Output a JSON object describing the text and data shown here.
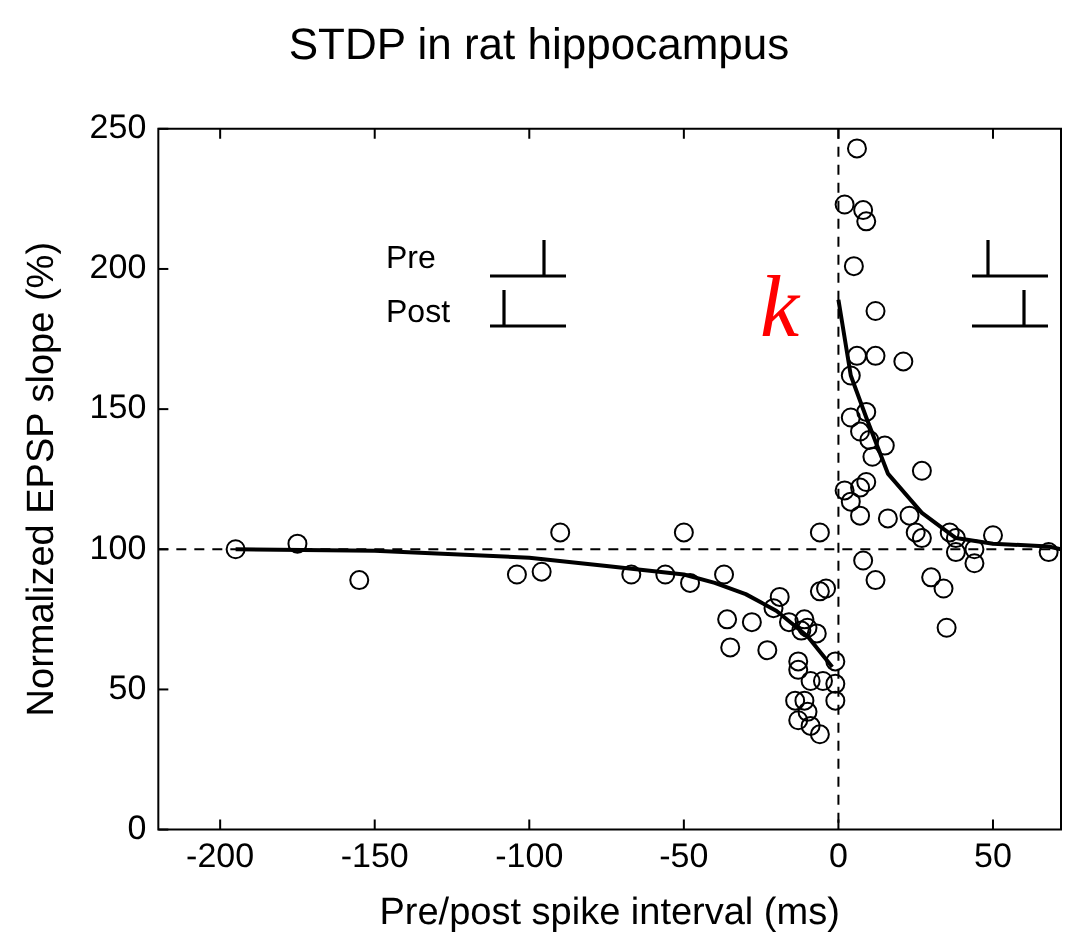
{
  "chart_data": {
    "type": "scatter",
    "title": "STDP in rat hippocampus",
    "xlabel": "Pre/post spike interval (ms)",
    "ylabel": "Normalized EPSP slope (%)",
    "xlim": [
      -220,
      72
    ],
    "ylim": [
      0,
      250
    ],
    "xticks": [
      -200,
      -150,
      -100,
      -50,
      0,
      50
    ],
    "yticks": [
      0,
      50,
      100,
      150,
      200,
      250
    ],
    "grid": false,
    "legend": false,
    "annotations": [
      "Pre",
      "Post",
      "k"
    ],
    "ref_lines": [
      {
        "axis": "y",
        "value": 100,
        "line_style": "dashed",
        "color": "#000000"
      },
      {
        "axis": "x",
        "value": 0,
        "line_style": "dashed",
        "color": "#000000"
      }
    ],
    "series": [
      {
        "color": "#000000",
        "marker": "circle",
        "x": [
          -195,
          -175,
          -155,
          -104,
          -96,
          -90,
          -67,
          -56,
          -50,
          -48,
          -37,
          -36,
          -35,
          -28,
          -23,
          -21,
          -19,
          -16,
          -12,
          -11,
          -10,
          -7,
          -6,
          -6,
          -4,
          -13,
          -13,
          -9,
          -14,
          -11,
          -13,
          -9,
          -6,
          -1,
          -5,
          -1,
          -1,
          -10,
          6,
          2,
          8,
          9,
          5,
          12,
          6,
          12,
          21,
          4,
          4,
          9,
          7,
          10,
          11,
          15,
          27,
          2,
          9,
          7,
          4,
          7,
          16,
          23,
          25,
          27,
          36,
          38,
          38,
          44,
          44,
          50,
          68,
          8,
          12,
          30,
          34,
          35
        ],
        "values": [
          100,
          102,
          89,
          91,
          92,
          106,
          91,
          91,
          106,
          88,
          91,
          75,
          65,
          74,
          64,
          79,
          83,
          74,
          71,
          75,
          72,
          70,
          85,
          106,
          86,
          60,
          57,
          53,
          46,
          46,
          39,
          37,
          34,
          60,
          53,
          52,
          46,
          42,
          243,
          223,
          221,
          217,
          201,
          185,
          169,
          169,
          167,
          162,
          147,
          149,
          142,
          139,
          133,
          137,
          128,
          121,
          124,
          122,
          117,
          112,
          111,
          112,
          106,
          104,
          106,
          104,
          99,
          100,
          95,
          105,
          99,
          96,
          89,
          90,
          86,
          72
        ]
      },
      {
        "type": "line",
        "color": "#000000",
        "marker": "none",
        "line_style": "solid",
        "x": [
          -195,
          -150,
          -100,
          -75,
          -50,
          -40,
          -30,
          -20,
          -10,
          -2
        ],
        "values": [
          100,
          99.5,
          97,
          94,
          91,
          88,
          84,
          78,
          69,
          58
        ]
      },
      {
        "type": "line",
        "color": "#000000",
        "marker": "none",
        "line_style": "solid",
        "x": [
          0,
          4,
          9,
          16,
          27,
          38,
          50,
          68,
          72
        ],
        "values": [
          189,
          162,
          147,
          127,
          113,
          104,
          102,
          101,
          100
        ]
      }
    ]
  }
}
